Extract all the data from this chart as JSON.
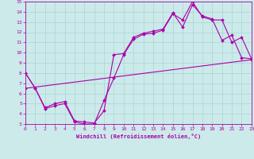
{
  "xlabel": "Windchill (Refroidissement éolien,°C)",
  "xlim": [
    0,
    23
  ],
  "ylim": [
    3,
    15
  ],
  "xticks": [
    0,
    1,
    2,
    3,
    4,
    5,
    6,
    7,
    8,
    9,
    10,
    11,
    12,
    13,
    14,
    15,
    16,
    17,
    18,
    19,
    20,
    21,
    22,
    23
  ],
  "yticks": [
    3,
    4,
    5,
    6,
    7,
    8,
    9,
    10,
    11,
    12,
    13,
    14,
    15
  ],
  "bg_color": "#cceaea",
  "grid_color": "#aad4d4",
  "line_color": "#aa00aa",
  "curve1_x": [
    0,
    1,
    2,
    3,
    4,
    5,
    6,
    7,
    8,
    9,
    10,
    11,
    12,
    13,
    14,
    15,
    16,
    17,
    18,
    19,
    20,
    21,
    22,
    23
  ],
  "curve1_y": [
    8.0,
    6.5,
    4.5,
    4.8,
    5.0,
    3.2,
    3.0,
    3.0,
    5.3,
    7.5,
    9.8,
    11.3,
    11.8,
    11.9,
    12.2,
    13.8,
    13.2,
    15.0,
    13.5,
    13.2,
    13.2,
    11.0,
    11.5,
    9.4
  ],
  "curve2_x": [
    0,
    1,
    2,
    3,
    4,
    5,
    6,
    7,
    8,
    9,
    10,
    11,
    12,
    13,
    14,
    15,
    16,
    17,
    18,
    19,
    20,
    21,
    22,
    23
  ],
  "curve2_y": [
    8.0,
    6.5,
    4.6,
    5.0,
    5.2,
    3.3,
    3.2,
    3.1,
    4.3,
    9.8,
    9.9,
    11.5,
    11.9,
    12.1,
    12.3,
    13.9,
    12.5,
    14.7,
    13.6,
    13.3,
    11.2,
    11.7,
    9.5,
    9.4
  ],
  "curve3_x": [
    0,
    23
  ],
  "curve3_y": [
    6.5,
    9.3
  ]
}
